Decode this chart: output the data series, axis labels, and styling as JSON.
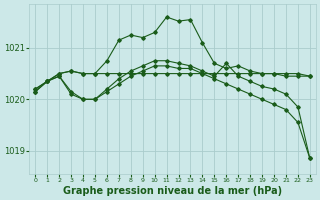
{
  "bg_color": "#cce8e8",
  "grid_color": "#aacccc",
  "line_color": "#1a5c1a",
  "marker_color": "#1a5c1a",
  "xlabel": "Graphe pression niveau de la mer (hPa)",
  "xlabel_fontsize": 7,
  "ylim": [
    1018.55,
    1021.85
  ],
  "yticks": [
    1019,
    1020,
    1021
  ],
  "xlim": [
    -0.5,
    23.5
  ],
  "xticks": [
    0,
    1,
    2,
    3,
    4,
    5,
    6,
    7,
    8,
    9,
    10,
    11,
    12,
    13,
    14,
    15,
    16,
    17,
    18,
    19,
    20,
    21,
    22,
    23
  ],
  "series": [
    {
      "x": [
        0,
        1,
        2,
        3,
        4,
        5,
        6,
        7,
        8,
        9,
        10,
        11,
        12,
        13,
        14,
        15,
        16,
        17,
        18,
        19,
        20,
        21,
        22,
        23
      ],
      "y": [
        1020.2,
        1020.35,
        1020.5,
        1020.55,
        1020.5,
        1020.5,
        1020.75,
        1021.15,
        1021.25,
        1021.2,
        1021.3,
        1021.6,
        1021.52,
        1021.55,
        1021.1,
        1020.7,
        1020.6,
        1020.65,
        1020.55,
        1020.5,
        1020.5,
        1020.45,
        1020.45,
        1020.45
      ]
    },
    {
      "x": [
        0,
        1,
        2,
        3,
        4,
        5,
        6,
        7,
        8,
        9,
        10,
        11,
        12,
        13,
        14,
        15,
        16,
        17,
        18,
        19,
        20,
        21,
        22,
        23
      ],
      "y": [
        1020.2,
        1020.35,
        1020.5,
        1020.55,
        1020.5,
        1020.5,
        1020.5,
        1020.5,
        1020.5,
        1020.5,
        1020.5,
        1020.5,
        1020.5,
        1020.5,
        1020.5,
        1020.5,
        1020.5,
        1020.5,
        1020.5,
        1020.5,
        1020.5,
        1020.5,
        1020.5,
        1020.45
      ]
    },
    {
      "x": [
        0,
        1,
        2,
        3,
        4,
        5,
        6,
        7,
        8,
        9,
        10,
        11,
        12,
        13,
        14,
        15,
        16,
        17,
        18,
        19,
        20,
        21,
        22,
        23
      ],
      "y": [
        1020.15,
        1020.35,
        1020.45,
        1020.15,
        1020.0,
        1020.0,
        1020.15,
        1020.3,
        1020.45,
        1020.55,
        1020.65,
        1020.65,
        1020.6,
        1020.6,
        1020.5,
        1020.4,
        1020.3,
        1020.2,
        1020.1,
        1020.0,
        1019.9,
        1019.8,
        1019.55,
        1018.85
      ]
    },
    {
      "x": [
        0,
        1,
        2,
        3,
        4,
        5,
        6,
        7,
        8,
        9,
        10,
        11,
        12,
        13,
        14,
        15,
        16,
        17,
        18,
        19,
        20,
        21,
        22,
        23
      ],
      "y": [
        1020.15,
        1020.35,
        1020.45,
        1020.1,
        1020.0,
        1020.0,
        1020.2,
        1020.4,
        1020.55,
        1020.65,
        1020.75,
        1020.75,
        1020.7,
        1020.65,
        1020.55,
        1020.45,
        1020.7,
        1020.45,
        1020.35,
        1020.25,
        1020.2,
        1020.1,
        1019.85,
        1018.85
      ]
    }
  ]
}
